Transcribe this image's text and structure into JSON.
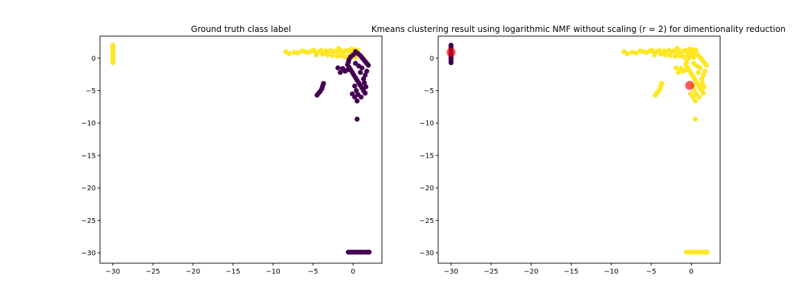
{
  "colors": {
    "class_a": "#440154",
    "class_b": "#fde725",
    "centroid": "#ff0000",
    "axis": "#000000",
    "background": "#ffffff"
  },
  "chart_data": [
    {
      "type": "scatter",
      "title": "Ground truth class label",
      "xlabel": "",
      "ylabel": "",
      "xlim": [
        -31.6,
        3.6
      ],
      "ylim": [
        -31.6,
        3.4
      ],
      "xticks": [
        -30,
        -25,
        -20,
        -15,
        -10,
        -5,
        0
      ],
      "yticks": [
        0,
        -5,
        -10,
        -15,
        -20,
        -25,
        -30
      ],
      "xtick_labels": [
        "−30",
        "−25",
        "−20",
        "−15",
        "−10",
        "−5",
        "0"
      ],
      "ytick_labels": [
        "0",
        "−5",
        "−10",
        "−15",
        "−20",
        "−25",
        "−30"
      ],
      "grid": false,
      "legend": "none",
      "series": [
        {
          "color_key": "class_b",
          "points": [
            [
              -30,
              2.0
            ],
            [
              -30,
              1.7
            ],
            [
              -30,
              1.4
            ],
            [
              -30,
              1.1
            ],
            [
              -30,
              0.8
            ],
            [
              -30,
              0.5
            ],
            [
              -30,
              0.2
            ],
            [
              -30,
              -0.1
            ],
            [
              -30,
              -0.4
            ],
            [
              -30,
              -0.7
            ],
            [
              -8.4,
              1.0
            ],
            [
              -8.0,
              0.7
            ],
            [
              -7.4,
              0.9
            ],
            [
              -6.9,
              0.8
            ],
            [
              -6.4,
              1.1
            ],
            [
              -6.0,
              1.0
            ],
            [
              -5.6,
              0.9
            ],
            [
              -5.2,
              1.1
            ],
            [
              -4.9,
              1.2
            ],
            [
              -4.6,
              0.9
            ],
            [
              -4.3,
              1.0
            ],
            [
              -4.0,
              1.2
            ],
            [
              -3.7,
              0.8
            ],
            [
              -3.4,
              1.1
            ],
            [
              -3.1,
              1.0
            ],
            [
              -2.8,
              1.2
            ],
            [
              -2.5,
              0.9
            ],
            [
              -2.2,
              1.1
            ],
            [
              -1.9,
              1.0
            ],
            [
              -1.6,
              1.3
            ],
            [
              -1.3,
              0.8
            ],
            [
              -1.0,
              1.1
            ],
            [
              -0.7,
              1.2
            ],
            [
              -0.4,
              0.9
            ],
            [
              -0.1,
              1.0
            ],
            [
              0.2,
              1.3
            ],
            [
              0.5,
              0.7
            ],
            [
              -2.0,
              0.3
            ],
            [
              -1.5,
              0.4
            ],
            [
              -1.0,
              0.2
            ],
            [
              -0.5,
              0.4
            ],
            [
              0.0,
              0.2
            ],
            [
              0.3,
              0.1
            ],
            [
              -2.6,
              0.4
            ],
            [
              -3.2,
              0.5
            ],
            [
              -3.8,
              0.6
            ],
            [
              -0.2,
              1.4
            ],
            [
              0.6,
              1.2
            ],
            [
              -1.8,
              1.5
            ],
            [
              -4.6,
              0.5
            ]
          ]
        },
        {
          "color_key": "class_a",
          "points": [
            [
              0.3,
              1.0
            ],
            [
              0.6,
              0.7
            ],
            [
              0.9,
              0.4
            ],
            [
              1.1,
              0.1
            ],
            [
              1.3,
              -0.2
            ],
            [
              1.5,
              -0.5
            ],
            [
              1.7,
              -0.8
            ],
            [
              1.9,
              -1.1
            ],
            [
              0.0,
              0.5
            ],
            [
              -0.3,
              0.2
            ],
            [
              -0.5,
              -0.2
            ],
            [
              -0.6,
              -0.6
            ],
            [
              -0.7,
              -1.0
            ],
            [
              -0.5,
              -1.4
            ],
            [
              -0.3,
              -1.8
            ],
            [
              -0.1,
              -2.2
            ],
            [
              0.1,
              -2.6
            ],
            [
              0.3,
              -3.0
            ],
            [
              0.5,
              -3.4
            ],
            [
              0.7,
              -3.8
            ],
            [
              0.9,
              -4.2
            ],
            [
              1.1,
              -4.6
            ],
            [
              1.3,
              -5.0
            ],
            [
              1.5,
              -5.4
            ],
            [
              1.3,
              -3.2
            ],
            [
              1.5,
              -2.6
            ],
            [
              1.7,
              -2.0
            ],
            [
              1.1,
              -1.5
            ],
            [
              0.7,
              -1.2
            ],
            [
              0.3,
              -0.8
            ],
            [
              0.9,
              -2.2
            ],
            [
              1.4,
              -3.8
            ],
            [
              0.2,
              -4.3
            ],
            [
              0.4,
              -5.0
            ],
            [
              0.6,
              -5.6
            ],
            [
              0.2,
              -6.0
            ],
            [
              0.5,
              -6.6
            ],
            [
              1.0,
              -6.0
            ],
            [
              -0.1,
              -5.5
            ],
            [
              1.6,
              -4.4
            ],
            [
              -0.7,
              -1.8
            ],
            [
              -1.0,
              -2.0
            ],
            [
              -1.3,
              -1.6
            ],
            [
              -1.6,
              -2.2
            ],
            [
              -1.9,
              -1.5
            ],
            [
              -3.7,
              -3.9
            ],
            [
              -3.8,
              -4.3
            ],
            [
              -3.9,
              -4.7
            ],
            [
              -4.1,
              -5.1
            ],
            [
              -4.3,
              -5.4
            ],
            [
              -4.5,
              -5.7
            ],
            [
              0.5,
              -9.4
            ],
            [
              -0.6,
              -29.9
            ],
            [
              -0.3,
              -29.9
            ],
            [
              0.0,
              -29.9
            ],
            [
              0.3,
              -29.9
            ],
            [
              0.6,
              -29.9
            ],
            [
              0.9,
              -29.9
            ],
            [
              1.2,
              -29.9
            ],
            [
              1.5,
              -29.9
            ],
            [
              1.8,
              -29.9
            ],
            [
              2.0,
              -29.9
            ]
          ]
        }
      ],
      "centroids": []
    },
    {
      "type": "scatter",
      "title": "Kmeans clustering result using logarithmic NMF without scaling (r = 2) for dimentionality reduction",
      "xlabel": "",
      "ylabel": "",
      "xlim": [
        -31.6,
        3.6
      ],
      "ylim": [
        -31.6,
        3.4
      ],
      "xticks": [
        -30,
        -25,
        -20,
        -15,
        -10,
        -5,
        0
      ],
      "yticks": [
        0,
        -5,
        -10,
        -15,
        -20,
        -25,
        -30
      ],
      "xtick_labels": [
        "−30",
        "−25",
        "−20",
        "−15",
        "−10",
        "−5",
        "0"
      ],
      "ytick_labels": [
        "0",
        "−5",
        "−10",
        "−15",
        "−20",
        "−25",
        "−30"
      ],
      "grid": false,
      "legend": "none",
      "series": [
        {
          "color_key": "class_a",
          "points": [
            [
              -30,
              2.0
            ],
            [
              -30,
              1.7
            ],
            [
              -30,
              1.4
            ],
            [
              -30,
              1.1
            ],
            [
              -30,
              0.8
            ],
            [
              -30,
              0.5
            ],
            [
              -30,
              0.2
            ],
            [
              -30,
              -0.1
            ],
            [
              -30,
              -0.4
            ],
            [
              -30,
              -0.7
            ]
          ]
        },
        {
          "color_key": "class_b",
          "points": [
            [
              -8.4,
              1.0
            ],
            [
              -8.0,
              0.7
            ],
            [
              -7.4,
              0.9
            ],
            [
              -6.9,
              0.8
            ],
            [
              -6.4,
              1.1
            ],
            [
              -6.0,
              1.0
            ],
            [
              -5.6,
              0.9
            ],
            [
              -5.2,
              1.1
            ],
            [
              -4.9,
              1.2
            ],
            [
              -4.6,
              0.9
            ],
            [
              -4.3,
              1.0
            ],
            [
              -4.0,
              1.2
            ],
            [
              -3.7,
              0.8
            ],
            [
              -3.4,
              1.1
            ],
            [
              -3.1,
              1.0
            ],
            [
              -2.8,
              1.2
            ],
            [
              -2.5,
              0.9
            ],
            [
              -2.2,
              1.1
            ],
            [
              -1.9,
              1.0
            ],
            [
              -1.6,
              1.3
            ],
            [
              -1.3,
              0.8
            ],
            [
              -1.0,
              1.1
            ],
            [
              -0.7,
              1.2
            ],
            [
              -0.4,
              0.9
            ],
            [
              -0.1,
              1.0
            ],
            [
              0.2,
              1.3
            ],
            [
              0.5,
              0.7
            ],
            [
              -2.0,
              0.3
            ],
            [
              -1.5,
              0.4
            ],
            [
              -1.0,
              0.2
            ],
            [
              -0.5,
              0.4
            ],
            [
              0.0,
              0.2
            ],
            [
              0.3,
              0.1
            ],
            [
              -2.6,
              0.4
            ],
            [
              -3.2,
              0.5
            ],
            [
              -3.8,
              0.6
            ],
            [
              -0.2,
              1.4
            ],
            [
              0.6,
              1.2
            ],
            [
              -1.8,
              1.5
            ],
            [
              -4.6,
              0.5
            ],
            [
              0.3,
              1.0
            ],
            [
              0.6,
              0.7
            ],
            [
              0.9,
              0.4
            ],
            [
              1.1,
              0.1
            ],
            [
              1.3,
              -0.2
            ],
            [
              1.5,
              -0.5
            ],
            [
              1.7,
              -0.8
            ],
            [
              1.9,
              -1.1
            ],
            [
              0.0,
              0.5
            ],
            [
              -0.3,
              0.2
            ],
            [
              -0.5,
              -0.2
            ],
            [
              -0.6,
              -0.6
            ],
            [
              -0.7,
              -1.0
            ],
            [
              -0.5,
              -1.4
            ],
            [
              -0.3,
              -1.8
            ],
            [
              -0.1,
              -2.2
            ],
            [
              0.1,
              -2.6
            ],
            [
              0.3,
              -3.0
            ],
            [
              0.5,
              -3.4
            ],
            [
              0.7,
              -3.8
            ],
            [
              0.9,
              -4.2
            ],
            [
              1.1,
              -4.6
            ],
            [
              1.3,
              -5.0
            ],
            [
              1.5,
              -5.4
            ],
            [
              1.3,
              -3.2
            ],
            [
              1.5,
              -2.6
            ],
            [
              1.7,
              -2.0
            ],
            [
              1.1,
              -1.5
            ],
            [
              0.7,
              -1.2
            ],
            [
              0.3,
              -0.8
            ],
            [
              0.9,
              -2.2
            ],
            [
              1.4,
              -3.8
            ],
            [
              0.2,
              -4.3
            ],
            [
              0.4,
              -5.0
            ],
            [
              0.6,
              -5.6
            ],
            [
              0.2,
              -6.0
            ],
            [
              0.5,
              -6.6
            ],
            [
              1.0,
              -6.0
            ],
            [
              -0.1,
              -5.5
            ],
            [
              1.6,
              -4.4
            ],
            [
              -0.7,
              -1.8
            ],
            [
              -1.0,
              -2.0
            ],
            [
              -1.3,
              -1.6
            ],
            [
              -1.6,
              -2.2
            ],
            [
              -1.9,
              -1.5
            ],
            [
              -3.7,
              -3.9
            ],
            [
              -3.8,
              -4.3
            ],
            [
              -3.9,
              -4.7
            ],
            [
              -4.1,
              -5.1
            ],
            [
              -4.3,
              -5.4
            ],
            [
              -4.5,
              -5.7
            ],
            [
              0.5,
              -9.4
            ],
            [
              -0.6,
              -29.9
            ],
            [
              -0.3,
              -29.9
            ],
            [
              0.0,
              -29.9
            ],
            [
              0.3,
              -29.9
            ],
            [
              0.6,
              -29.9
            ],
            [
              0.9,
              -29.9
            ],
            [
              1.2,
              -29.9
            ],
            [
              1.5,
              -29.9
            ],
            [
              1.8,
              -29.9
            ],
            [
              2.0,
              -29.9
            ]
          ]
        }
      ],
      "centroids": [
        [
          -30,
          0.9
        ],
        [
          -0.2,
          -4.2
        ]
      ]
    }
  ]
}
